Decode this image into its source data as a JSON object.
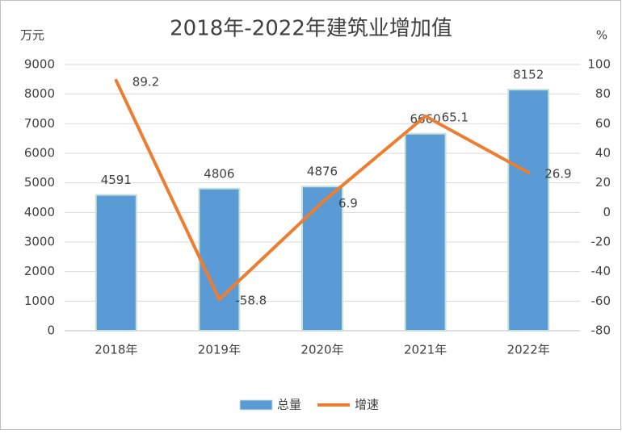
{
  "chart_data": {
    "type": "bar-line",
    "title": "2018年-2022年建筑业增加值",
    "y_label": "万元",
    "y2_label": "%",
    "categories": [
      "2018年",
      "2019年",
      "2020年",
      "2021年",
      "2022年"
    ],
    "series": [
      {
        "name": "总量",
        "type": "bar",
        "color": "#5b9bd5",
        "values": [
          4591,
          4806,
          4876,
          6660,
          8152
        ]
      },
      {
        "name": "增速",
        "type": "line",
        "color": "#ed7d31",
        "axis": "y2",
        "values": [
          89.2,
          -58.8,
          6.9,
          65.1,
          26.9
        ]
      }
    ],
    "ylim": [
      0,
      9000
    ],
    "yticks": [
      0,
      1000,
      2000,
      3000,
      4000,
      5000,
      6000,
      7000,
      8000,
      9000
    ],
    "y2lim": [
      -80,
      100
    ],
    "y2ticks": [
      -80,
      -60,
      -40,
      -20,
      0,
      20,
      40,
      60,
      80,
      100
    ],
    "grid": true,
    "legend": "bottom"
  }
}
